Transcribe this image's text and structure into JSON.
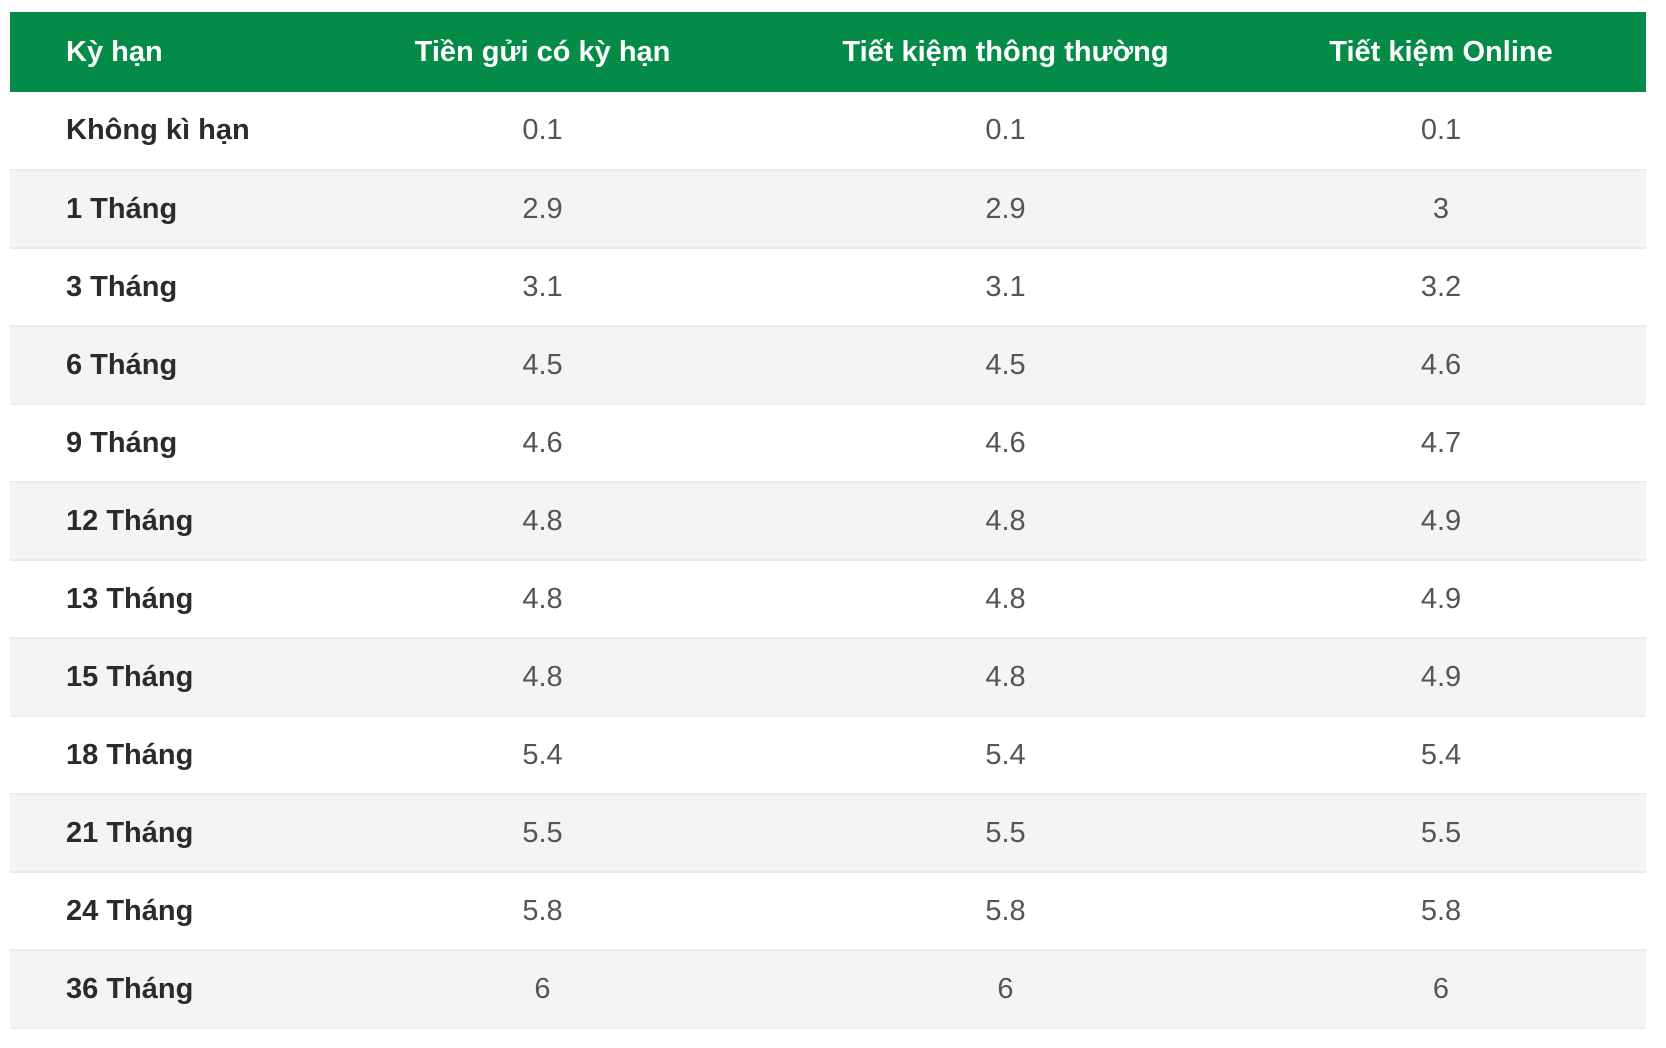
{
  "table": {
    "headers": [
      "Kỳ hạn",
      "Tiền gửi có kỳ hạn",
      "Tiết kiệm thông thường",
      "Tiết kiệm Online"
    ],
    "rows": [
      [
        "Không kì hạn",
        "0.1",
        "0.1",
        "0.1"
      ],
      [
        "1 Tháng",
        "2.9",
        "2.9",
        "3"
      ],
      [
        "3 Tháng",
        "3.1",
        "3.1",
        "3.2"
      ],
      [
        "6 Tháng",
        "4.5",
        "4.5",
        "4.6"
      ],
      [
        "9 Tháng",
        "4.6",
        "4.6",
        "4.7"
      ],
      [
        "12 Tháng",
        "4.8",
        "4.8",
        "4.9"
      ],
      [
        "13 Tháng",
        "4.8",
        "4.8",
        "4.9"
      ],
      [
        "15 Tháng",
        "4.8",
        "4.8",
        "4.9"
      ],
      [
        "18 Tháng",
        "5.4",
        "5.4",
        "5.4"
      ],
      [
        "21 Tháng",
        "5.5",
        "5.5",
        "5.5"
      ],
      [
        "24 Tháng",
        "5.8",
        "5.8",
        "5.8"
      ],
      [
        "36 Tháng",
        "6",
        "6",
        "6"
      ]
    ]
  },
  "colors": {
    "header_bg": "#038b47",
    "header_text": "#ffffff",
    "stripe_bg": "#f2f5f4"
  }
}
